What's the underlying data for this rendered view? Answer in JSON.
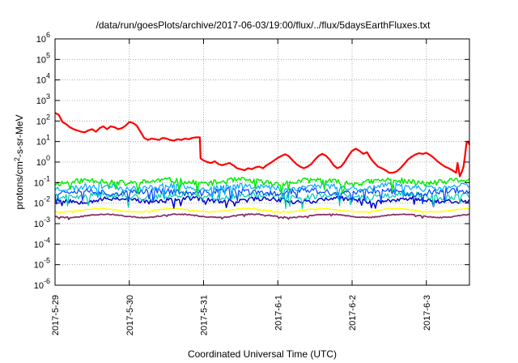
{
  "chart_data": {
    "type": "line",
    "title": "/data/run/goesPlots/archive/2017-06-03/19:00/flux/../flux/5daysEarthFluxes.txt",
    "xlabel": "Coordinated Universal Time (UTC)",
    "ylabel": "protons/cm2-s-sr-MeV",
    "y_scale": "log",
    "ylim": [
      1e-06,
      1000000.0
    ],
    "xlim": [
      0,
      5.58
    ],
    "x_start": "2017-5-29",
    "grid": true,
    "y_ticks": [
      {
        "exp": "-6"
      },
      {
        "exp": "-5"
      },
      {
        "exp": "-4"
      },
      {
        "exp": "-3"
      },
      {
        "exp": "-2"
      },
      {
        "exp": "-1"
      },
      {
        "exp": "0"
      },
      {
        "exp": "1"
      },
      {
        "exp": "2"
      },
      {
        "exp": "3"
      },
      {
        "exp": "4"
      },
      {
        "exp": "5"
      },
      {
        "exp": "6"
      }
    ],
    "x_ticks": [
      {
        "pos": 0,
        "label": "2017-5-29"
      },
      {
        "pos": 1,
        "label": "2017-5-30"
      },
      {
        "pos": 2,
        "label": "2017-5-31"
      },
      {
        "pos": 3,
        "label": "2017-6-1"
      },
      {
        "pos": 4,
        "label": "2017-6-2"
      },
      {
        "pos": 5,
        "label": "2017-6-3"
      }
    ],
    "series": [
      {
        "color": "#ff0000",
        "width": 2.2,
        "points": [
          [
            0.0,
            250
          ],
          [
            0.05,
            200
          ],
          [
            0.1,
            90
          ],
          [
            0.15,
            70
          ],
          [
            0.2,
            50
          ],
          [
            0.25,
            40
          ],
          [
            0.3,
            35
          ],
          [
            0.35,
            30
          ],
          [
            0.4,
            28
          ],
          [
            0.45,
            35
          ],
          [
            0.5,
            40
          ],
          [
            0.55,
            30
          ],
          [
            0.6,
            45
          ],
          [
            0.65,
            55
          ],
          [
            0.7,
            40
          ],
          [
            0.75,
            55
          ],
          [
            0.8,
            50
          ],
          [
            0.85,
            40
          ],
          [
            0.9,
            45
          ],
          [
            0.95,
            60
          ],
          [
            1.0,
            90
          ],
          [
            1.05,
            80
          ],
          [
            1.1,
            60
          ],
          [
            1.15,
            30
          ],
          [
            1.2,
            15
          ],
          [
            1.25,
            12
          ],
          [
            1.3,
            14
          ],
          [
            1.35,
            13
          ],
          [
            1.4,
            12
          ],
          [
            1.45,
            15
          ],
          [
            1.5,
            14
          ],
          [
            1.55,
            12
          ],
          [
            1.6,
            11
          ],
          [
            1.65,
            13
          ],
          [
            1.7,
            12
          ],
          [
            1.75,
            14
          ],
          [
            1.8,
            13
          ],
          [
            1.85,
            15
          ],
          [
            1.9,
            16
          ],
          [
            1.95,
            16
          ],
          [
            1.96,
            1.5
          ],
          [
            2.0,
            1.2
          ],
          [
            2.05,
            1.0
          ],
          [
            2.1,
            0.9
          ],
          [
            2.15,
            1.1
          ],
          [
            2.2,
            0.8
          ],
          [
            2.25,
            0.7
          ],
          [
            2.3,
            0.8
          ],
          [
            2.35,
            0.9
          ],
          [
            2.4,
            0.7
          ],
          [
            2.45,
            0.5
          ],
          [
            2.5,
            0.45
          ],
          [
            2.55,
            0.4
          ],
          [
            2.6,
            0.5
          ],
          [
            2.65,
            0.45
          ],
          [
            2.7,
            0.55
          ],
          [
            2.75,
            0.6
          ],
          [
            2.8,
            0.5
          ],
          [
            2.85,
            0.7
          ],
          [
            2.9,
            0.9
          ],
          [
            2.95,
            1.2
          ],
          [
            3.0,
            1.6
          ],
          [
            3.05,
            2.0
          ],
          [
            3.1,
            2.4
          ],
          [
            3.15,
            1.9
          ],
          [
            3.2,
            1.2
          ],
          [
            3.25,
            0.8
          ],
          [
            3.3,
            0.6
          ],
          [
            3.35,
            0.5
          ],
          [
            3.4,
            0.6
          ],
          [
            3.45,
            0.8
          ],
          [
            3.5,
            1.3
          ],
          [
            3.55,
            2.0
          ],
          [
            3.6,
            2.5
          ],
          [
            3.65,
            2.0
          ],
          [
            3.7,
            1.3
          ],
          [
            3.75,
            0.7
          ],
          [
            3.8,
            0.5
          ],
          [
            3.85,
            0.6
          ],
          [
            3.9,
            1.0
          ],
          [
            3.95,
            2.0
          ],
          [
            4.0,
            3.5
          ],
          [
            4.05,
            4.5
          ],
          [
            4.1,
            3.5
          ],
          [
            4.15,
            2.5
          ],
          [
            4.2,
            3.0
          ],
          [
            4.25,
            1.5
          ],
          [
            4.3,
            0.9
          ],
          [
            4.35,
            0.6
          ],
          [
            4.4,
            0.5
          ],
          [
            4.45,
            0.4
          ],
          [
            4.5,
            0.3
          ],
          [
            4.55,
            0.3
          ],
          [
            4.6,
            0.35
          ],
          [
            4.65,
            0.5
          ],
          [
            4.7,
            0.8
          ],
          [
            4.75,
            1.3
          ],
          [
            4.8,
            1.8
          ],
          [
            4.85,
            2.3
          ],
          [
            4.9,
            2.7
          ],
          [
            4.95,
            2.5
          ],
          [
            5.0,
            2.8
          ],
          [
            5.05,
            2.2
          ],
          [
            5.1,
            1.6
          ],
          [
            5.15,
            1.1
          ],
          [
            5.2,
            0.8
          ],
          [
            5.25,
            0.6
          ],
          [
            5.3,
            0.5
          ],
          [
            5.35,
            0.4
          ],
          [
            5.4,
            0.3
          ],
          [
            5.42,
            0.9
          ],
          [
            5.45,
            0.2
          ],
          [
            5.48,
            0.35
          ],
          [
            5.5,
            0.6
          ],
          [
            5.52,
            2.0
          ],
          [
            5.54,
            8
          ],
          [
            5.56,
            10
          ],
          [
            5.58,
            7
          ]
        ]
      },
      {
        "color": "#00ee00",
        "width": 1.5,
        "base": 0.11,
        "amp": 0.28,
        "seed": 11
      },
      {
        "color": "#00aaff",
        "width": 1.2,
        "base": 0.06,
        "amp": 0.3,
        "seed": 23
      },
      {
        "color": "#0044ff",
        "width": 1.2,
        "base": 0.035,
        "amp": 0.3,
        "seed": 37
      },
      {
        "color": "#00ccaa",
        "width": 1.2,
        "base": 0.022,
        "amp": 0.3,
        "seed": 41
      },
      {
        "color": "#0000cc",
        "width": 1.5,
        "base": 0.014,
        "amp": 0.22,
        "seed": 53
      },
      {
        "color": "#ffff00",
        "width": 1.5,
        "base": 0.0045,
        "amp": 0.04,
        "seed": 67
      },
      {
        "color": "#883366",
        "width": 1.8,
        "base": 0.0024,
        "amp": 0.05,
        "seed": 79
      }
    ]
  }
}
